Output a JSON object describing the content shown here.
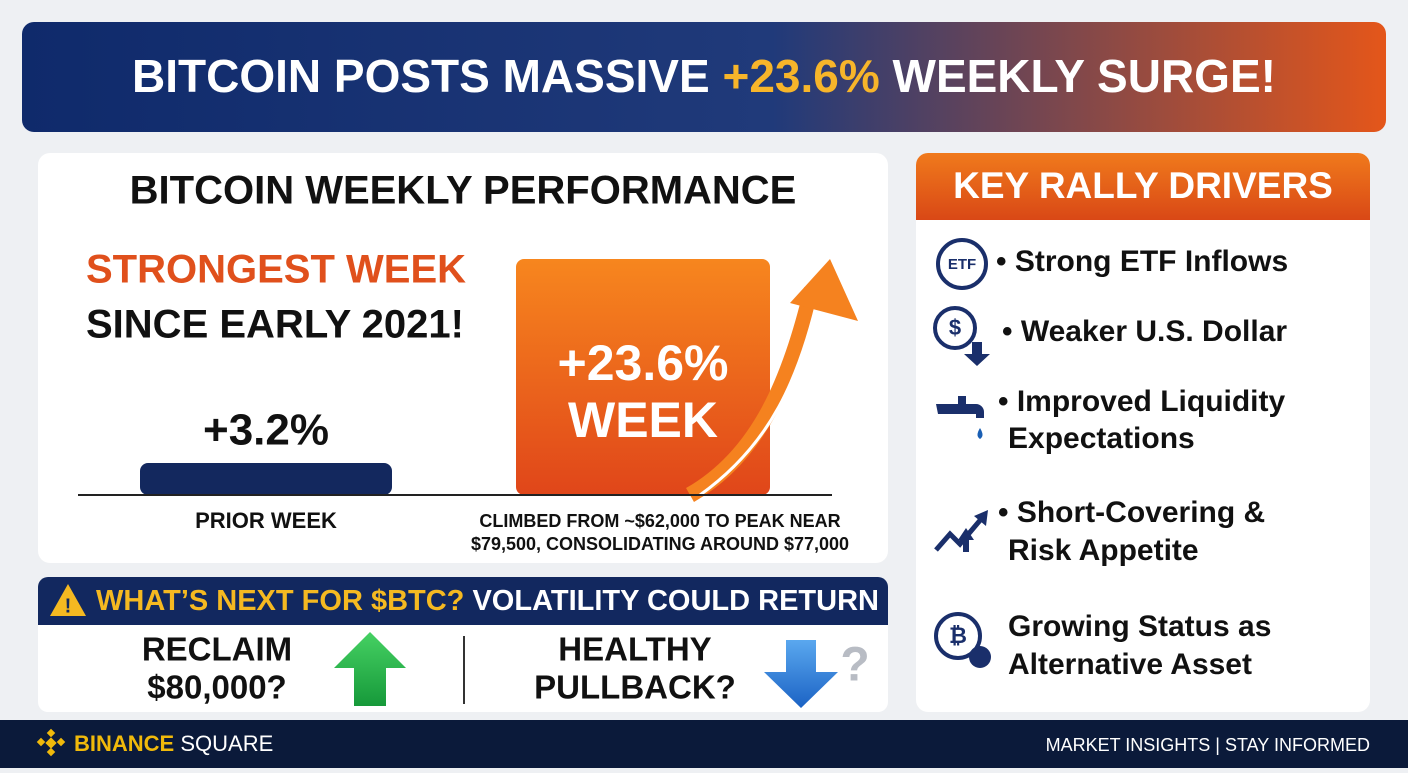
{
  "header": {
    "title_start": "BITCOIN POSTS MASSIVE",
    "title_highlight": "+23.6%",
    "title_end": "WEEKLY SURGE!"
  },
  "performance": {
    "title": "BITCOIN WEEKLY PERFORMANCE",
    "headline": [
      "STRONGEST WEEK",
      "SINCE EARLY 2021!"
    ],
    "bars": [
      {
        "label": [
          "PRIOR WEEK"
        ],
        "value": 3.2,
        "value_label": "+3.2%"
      },
      {
        "label": [
          "CLIMBED FROM ~$62,000 TO PEAK NEAR",
          "$79,500, CONSOLIDATING AROUND $77,000"
        ],
        "value": 23.6,
        "value_label": "+23.6%",
        "unit_label": "WEEK"
      }
    ]
  },
  "outlook": {
    "warning": "WHAT’S NEXT FOR $BTC?",
    "subtitle": "VOLATILITY COULD RETURN",
    "options": [
      {
        "lines": [
          "RECLAIM",
          "$80,000?"
        ]
      },
      {
        "lines": [
          "HEALTHY",
          "PULLBACK?"
        ]
      }
    ],
    "mark": "?"
  },
  "drivers": {
    "title": "KEY RALLY DRIVERS",
    "items": [
      {
        "icon_text": "ETF",
        "lines": [
          "• Strong ETF Inflows"
        ]
      },
      {
        "icon_text": "$",
        "lines": [
          "• Weaker U.S. Dollar"
        ]
      },
      {
        "lines": [
          "• Improved Liquidity",
          "Expectations"
        ]
      },
      {
        "lines": [
          "• Short-Covering &",
          "Risk Appetite"
        ]
      },
      {
        "icon_text": "₿",
        "lines": [
          "Growing Status as",
          "Alternative Asset"
        ]
      }
    ]
  },
  "footer": {
    "brand": "BINANCE",
    "brand_suffix": "SQUARE",
    "tagline": "MARKET INSIGHTS | STAY INFORMED"
  }
}
